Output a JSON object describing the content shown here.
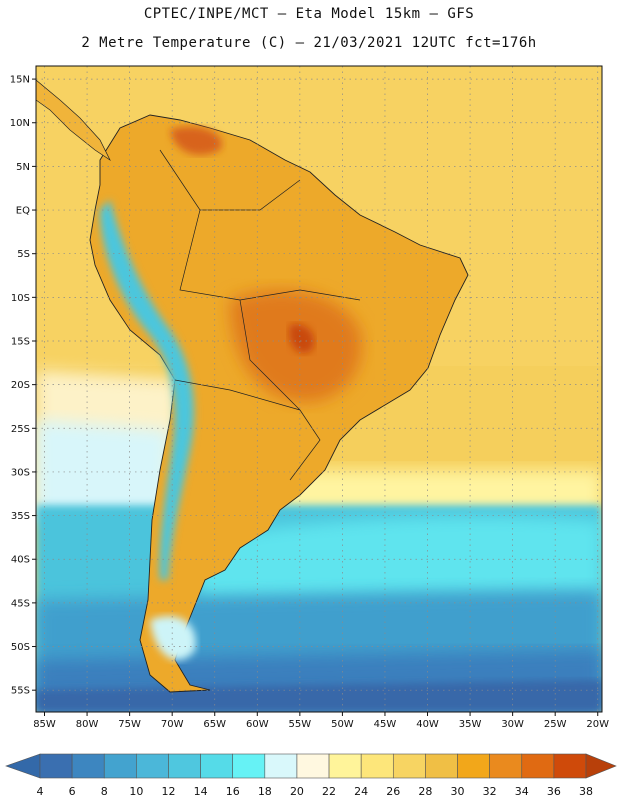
{
  "title": {
    "line1": "CPTEC/INPE/MCT –  Eta Model 15km – GFS",
    "line2": "2 Metre Temperature (C) – 21/03/2021 12UTC fct=176h"
  },
  "axes": {
    "lat_labels": [
      "15N",
      "10N",
      "5N",
      "EQ",
      "5S",
      "10S",
      "15S",
      "20S",
      "25S",
      "30S",
      "35S",
      "40S",
      "45S",
      "50S",
      "55S"
    ],
    "lat_values": [
      15,
      10,
      5,
      0,
      -5,
      -10,
      -15,
      -20,
      -25,
      -30,
      -35,
      -40,
      -45,
      -50,
      -55
    ],
    "lon_labels": [
      "85W",
      "80W",
      "75W",
      "70W",
      "65W",
      "60W",
      "55W",
      "50W",
      "45W",
      "40W",
      "35W",
      "30W",
      "25W",
      "20W"
    ],
    "lon_values": [
      -85,
      -80,
      -75,
      -70,
      -65,
      -60,
      -55,
      -50,
      -45,
      -40,
      -35,
      -30,
      -25,
      -20
    ],
    "lat_range": [
      -57.5,
      16.5
    ],
    "lon_range": [
      -86,
      -19.5
    ]
  },
  "colorbar": {
    "labels": [
      "4",
      "6",
      "8",
      "10",
      "12",
      "14",
      "16",
      "18",
      "20",
      "22",
      "24",
      "26",
      "28",
      "30",
      "32",
      "34",
      "36",
      "38"
    ],
    "colors": [
      "#3a6fb0",
      "#3d86c0",
      "#43a3cf",
      "#4bb7d9",
      "#4fc7df",
      "#55dbe8",
      "#66f2f5",
      "#d9f8fb",
      "#fff8e0",
      "#fff49a",
      "#fde67a",
      "#f7d462",
      "#f0bf45",
      "#f2a71a",
      "#ea8a1e",
      "#e06a12",
      "#cf4a0a"
    ],
    "left_arrow_color": "#3369a9",
    "right_arrow_color": "#b8400a"
  }
}
